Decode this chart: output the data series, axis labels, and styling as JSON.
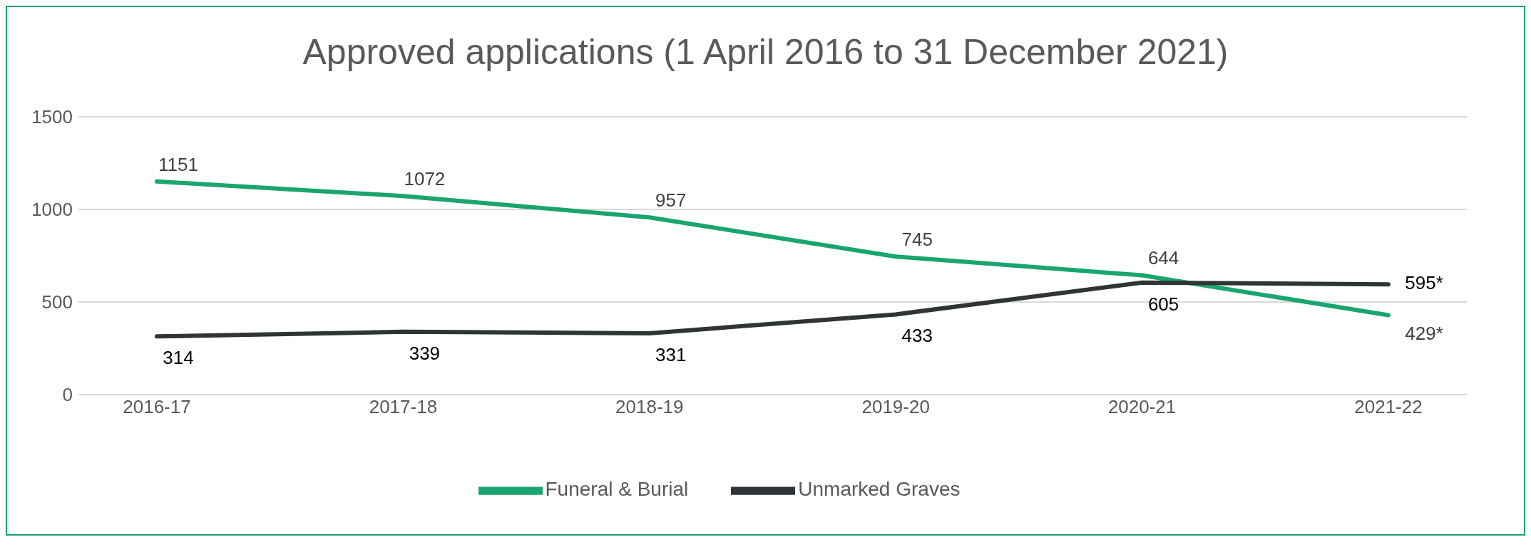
{
  "chart_data": {
    "type": "line",
    "title": "Approved applications (1 April 2016 to 31 December 2021)",
    "categories": [
      "2016-17",
      "2017-18",
      "2018-19",
      "2019-20",
      "2020-21",
      "2021-22"
    ],
    "series": [
      {
        "name": "Funeral & Burial",
        "color": "#1aa56e",
        "values": [
          1151,
          1072,
          957,
          745,
          644,
          429
        ],
        "value_labels": [
          "1151",
          "1072",
          "957",
          "745",
          "644",
          "429*"
        ]
      },
      {
        "name": "Unmarked Graves",
        "color": "#2f3437",
        "values": [
          314,
          339,
          331,
          433,
          605,
          595
        ],
        "value_labels": [
          "314",
          "339",
          "331",
          "433",
          "605",
          "595*"
        ]
      }
    ],
    "ylim": [
      0,
      1500
    ],
    "yticks": [
      0,
      500,
      1000,
      1500
    ],
    "grid": "y",
    "legend": "bottom",
    "marker": "none",
    "line_style": "solid"
  }
}
